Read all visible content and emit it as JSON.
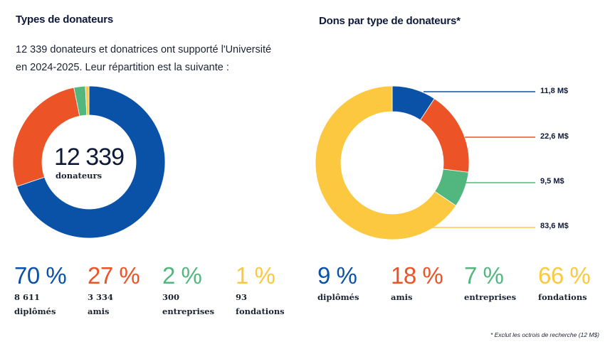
{
  "left": {
    "title": "Types de donateurs",
    "intro_line1": "12 339 donateurs et donatrices ont supporté l'Université",
    "intro_line2": "en 2024-2025. Leur répartition est la suivante :",
    "center_value": "12 339",
    "center_label": "donateurs",
    "stats": [
      {
        "percent": "70 %",
        "count": "8 611",
        "label": "diplômés"
      },
      {
        "percent": "27 %",
        "count": "3 334",
        "label": "amis"
      },
      {
        "percent": "2 %",
        "count": "300",
        "label": "entreprises"
      },
      {
        "percent": "1 %",
        "count": "93",
        "label": "fondations"
      }
    ]
  },
  "right": {
    "title": "Dons par type de donateurs*",
    "callouts": [
      "11,8 M$",
      "22,6 M$",
      "9,5 M$",
      "83,6 M$"
    ],
    "stats": [
      {
        "percent": "9 %",
        "label": "diplômés"
      },
      {
        "percent": "18 %",
        "label": "amis"
      },
      {
        "percent": "7 %",
        "label": "entreprises"
      },
      {
        "percent": "66 %",
        "label": "fondations"
      }
    ],
    "footnote": "* Exclut les octrois de recherche (12 M$)"
  },
  "colors": {
    "diplomes": "#0a52a8",
    "amis": "#ec5326",
    "entreprises": "#52b77e",
    "fondations": "#fbc840"
  },
  "chart_data": [
    {
      "type": "pie",
      "title": "Types de donateurs",
      "donut": true,
      "center_text": "12 339 donateurs",
      "categories": [
        "diplômés",
        "amis",
        "entreprises",
        "fondations"
      ],
      "values": [
        8611,
        3334,
        300,
        93
      ],
      "percent": [
        70,
        27,
        2,
        1
      ],
      "colors": [
        "#0a52a8",
        "#ec5326",
        "#52b77e",
        "#fbc840"
      ]
    },
    {
      "type": "pie",
      "title": "Dons par type de donateurs*",
      "donut": true,
      "categories": [
        "diplômés",
        "amis",
        "entreprises",
        "fondations"
      ],
      "values": [
        11.8,
        22.6,
        9.5,
        83.6
      ],
      "unit": "M$",
      "percent": [
        9,
        18,
        7,
        66
      ],
      "colors": [
        "#0a52a8",
        "#ec5326",
        "#52b77e",
        "#fbc840"
      ],
      "annotation": "* Exclut les octrois de recherche (12 M$)"
    }
  ]
}
